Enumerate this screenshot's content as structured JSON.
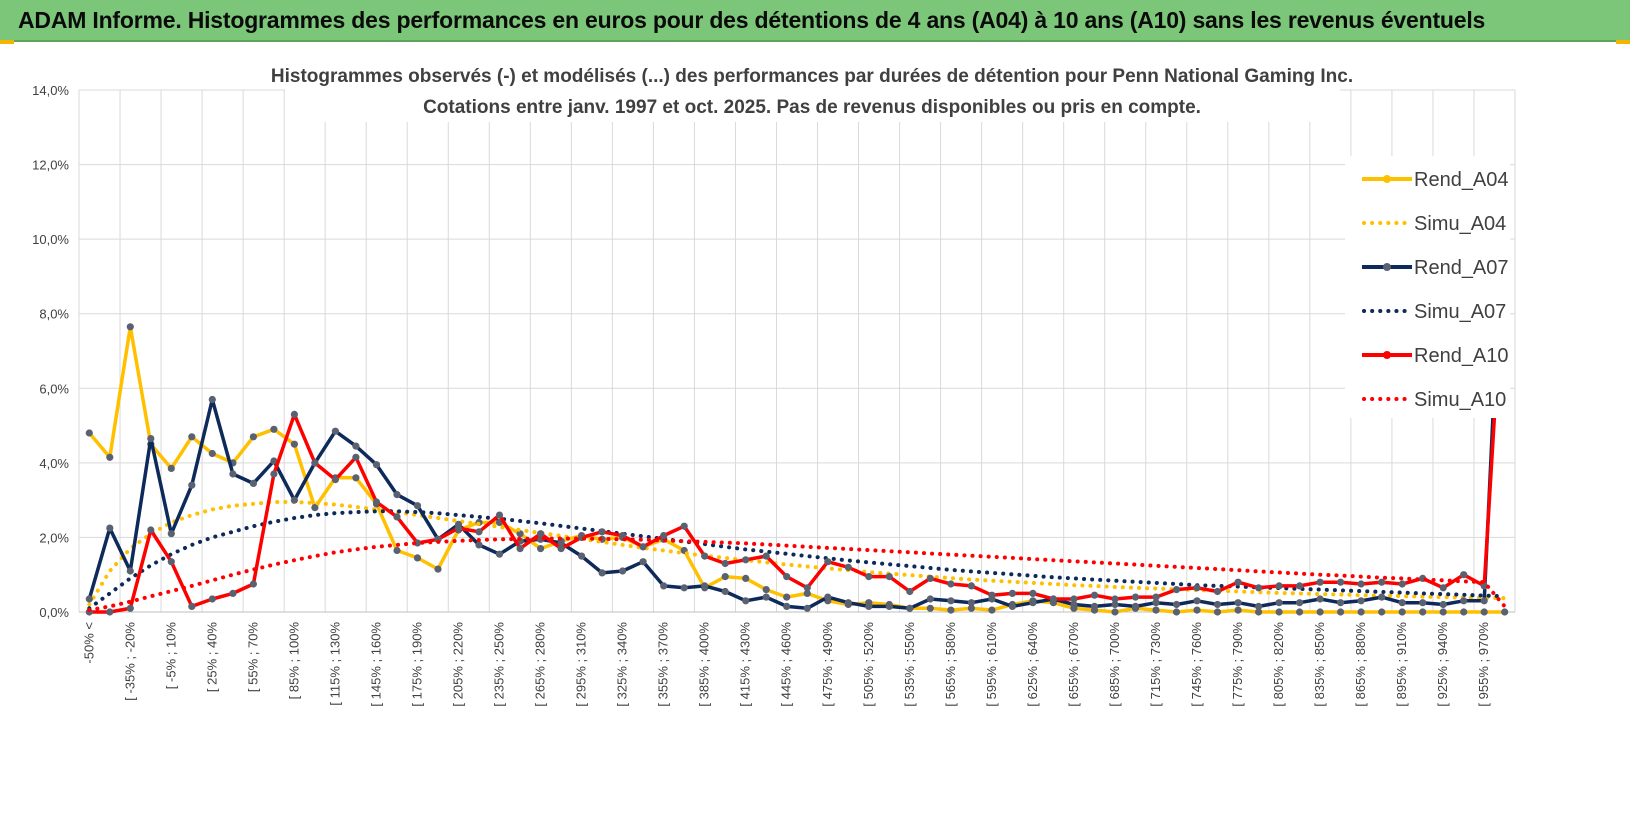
{
  "banner": {
    "title": "ADAM Informe. Histogrammes des performances en euros pour des détentions de 4 ans (A04) à 10 ans (A10) sans les revenus éventuels"
  },
  "colors": {
    "banner_bg": "#7cc67a",
    "A04": "#ffc000",
    "A07": "#0e2a5a",
    "A10": "#ff0000",
    "grid": "#d9d9d9",
    "text": "#404040"
  },
  "chart_data": {
    "type": "line",
    "title_line1": "Histogrammes observés (-) et modélisés (...) des performances par durées de détention pour Penn National Gaming Inc.",
    "title_line2": "Cotations entre janv. 1997 et oct. 2025. Pas de revenus disponibles ou pris en compte.",
    "xlabel": "",
    "ylabel": "",
    "ylim": [
      0,
      14
    ],
    "y_ticks": [
      "0,0%",
      "2,0%",
      "4,0%",
      "6,0%",
      "8,0%",
      "10,0%",
      "12,0%",
      "14,0%"
    ],
    "y_tick_values": [
      0,
      2,
      4,
      6,
      8,
      10,
      12,
      14
    ],
    "x_labels": [
      "-50% <",
      "[ -35% ; -20%",
      "[ -5% ; 10%",
      "[ 25% ; 40%",
      "[ 55% ; 70%",
      "[ 85% ; 100%",
      "[ 115% ; 130%",
      "[ 145% ; 160%",
      "[ 175% ; 190%",
      "[ 205% ; 220%",
      "[ 235% ; 250%",
      "[ 265% ; 280%",
      "[ 295% ; 310%",
      "[ 325% ; 340%",
      "[ 355% ; 370%",
      "[ 385% ; 400%",
      "[ 415% ; 430%",
      "[ 445% ; 460%",
      "[ 475% ; 490%",
      "[ 505% ; 520%",
      "[ 535% ; 550%",
      "[ 565% ; 580%",
      "[ 595% ; 610%",
      "[ 625% ; 640%",
      "[ 655% ; 670%",
      "[ 685% ; 700%",
      "[ 715% ; 730%",
      "[ 745% ; 760%",
      "[ 775% ; 790%",
      "[ 805% ; 820%",
      "[ 835% ; 850%",
      "[ 865% ; 880%",
      "[ 895% ; 910%",
      "[ 925% ; 940%",
      "[ 955% ; 970%"
    ],
    "n_points": 70,
    "grid": true,
    "legend_position": "right",
    "series": [
      {
        "name": "Rend_A04",
        "style": "solid",
        "color": "#ffc000",
        "values": [
          4.8,
          4.15,
          7.65,
          4.5,
          3.85,
          4.7,
          4.25,
          4.0,
          4.7,
          4.9,
          4.5,
          2.8,
          3.6,
          3.6,
          2.9,
          1.65,
          1.45,
          1.15,
          2.2,
          2.4,
          2.4,
          2.1,
          1.7,
          1.9,
          2.05,
          1.95,
          2.0,
          1.75,
          1.95,
          1.65,
          0.65,
          0.95,
          0.9,
          0.6,
          0.4,
          0.5,
          0.3,
          0.2,
          0.25,
          0.2,
          0.1,
          0.1,
          0.05,
          0.1,
          0.05,
          0.2,
          0.3,
          0.25,
          0.1,
          0.05,
          0.0,
          0.1,
          0.05,
          0.0,
          0.05,
          0.0,
          0.05,
          0.0,
          0.0,
          0.0,
          0.0,
          0.0,
          0.0,
          0.0,
          0.0,
          0.0,
          0.0,
          0.0,
          0.0,
          0.0
        ]
      },
      {
        "name": "Simu_A04",
        "style": "dotted",
        "color": "#ffc000",
        "values": [
          0.2,
          1.1,
          1.7,
          2.1,
          2.4,
          2.6,
          2.75,
          2.85,
          2.9,
          2.95,
          2.95,
          2.92,
          2.88,
          2.82,
          2.75,
          2.68,
          2.6,
          2.52,
          2.44,
          2.36,
          2.28,
          2.2,
          2.12,
          2.04,
          1.96,
          1.88,
          1.8,
          1.72,
          1.65,
          1.58,
          1.51,
          1.45,
          1.39,
          1.33,
          1.27,
          1.22,
          1.17,
          1.12,
          1.07,
          1.03,
          0.99,
          0.95,
          0.91,
          0.87,
          0.84,
          0.81,
          0.78,
          0.75,
          0.72,
          0.7,
          0.67,
          0.65,
          0.63,
          0.61,
          0.59,
          0.57,
          0.55,
          0.53,
          0.51,
          0.5,
          0.48,
          0.47,
          0.45,
          0.44,
          0.43,
          0.41,
          0.4,
          0.39,
          0.38,
          0.37
        ]
      },
      {
        "name": "Rend_A07",
        "style": "solid",
        "color": "#0e2a5a",
        "values": [
          0.35,
          2.25,
          1.1,
          4.65,
          2.1,
          3.4,
          5.7,
          3.7,
          3.45,
          4.05,
          3.0,
          4.0,
          4.85,
          4.45,
          3.95,
          3.15,
          2.85,
          1.95,
          2.35,
          1.8,
          1.55,
          1.9,
          1.95,
          1.85,
          1.5,
          1.05,
          1.1,
          1.35,
          0.7,
          0.65,
          0.7,
          0.55,
          0.3,
          0.4,
          0.15,
          0.1,
          0.4,
          0.25,
          0.15,
          0.15,
          0.1,
          0.35,
          0.3,
          0.25,
          0.35,
          0.15,
          0.25,
          0.35,
          0.2,
          0.15,
          0.2,
          0.15,
          0.25,
          0.2,
          0.3,
          0.2,
          0.25,
          0.15,
          0.25,
          0.25,
          0.35,
          0.25,
          0.3,
          0.4,
          0.25,
          0.25,
          0.2,
          0.3,
          0.3,
          11.9
        ]
      },
      {
        "name": "Simu_A07",
        "style": "dotted",
        "color": "#0e2a5a",
        "values": [
          0.1,
          0.5,
          0.9,
          1.25,
          1.55,
          1.8,
          2.0,
          2.15,
          2.3,
          2.42,
          2.52,
          2.6,
          2.65,
          2.68,
          2.7,
          2.7,
          2.68,
          2.65,
          2.6,
          2.55,
          2.5,
          2.44,
          2.38,
          2.31,
          2.24,
          2.17,
          2.1,
          2.03,
          1.96,
          1.89,
          1.82,
          1.75,
          1.68,
          1.62,
          1.56,
          1.5,
          1.44,
          1.38,
          1.33,
          1.28,
          1.23,
          1.18,
          1.13,
          1.09,
          1.05,
          1.01,
          0.97,
          0.93,
          0.9,
          0.87,
          0.84,
          0.81,
          0.78,
          0.75,
          0.72,
          0.7,
          0.68,
          0.66,
          0.64,
          0.62,
          0.6,
          0.58,
          0.56,
          0.54,
          0.52,
          0.5,
          0.48,
          0.46,
          0.44,
          0.42
        ]
      },
      {
        "name": "Rend_A10",
        "style": "solid",
        "color": "#ff0000",
        "values": [
          0.0,
          0.0,
          0.1,
          2.2,
          1.35,
          0.15,
          0.35,
          0.5,
          0.75,
          3.7,
          5.3,
          4.0,
          3.55,
          4.15,
          2.95,
          2.55,
          1.85,
          1.95,
          2.25,
          2.15,
          2.6,
          1.7,
          2.1,
          1.7,
          2.0,
          2.15,
          2.05,
          1.75,
          2.05,
          2.3,
          1.5,
          1.3,
          1.4,
          1.5,
          0.95,
          0.65,
          1.35,
          1.2,
          0.95,
          0.95,
          0.55,
          0.9,
          0.75,
          0.7,
          0.45,
          0.5,
          0.5,
          0.35,
          0.35,
          0.45,
          0.35,
          0.4,
          0.4,
          0.6,
          0.65,
          0.55,
          0.8,
          0.65,
          0.7,
          0.7,
          0.8,
          0.8,
          0.75,
          0.8,
          0.75,
          0.9,
          0.65,
          1.0,
          0.7,
          9.8
        ]
      },
      {
        "name": "Simu_A10",
        "style": "dotted",
        "color": "#ff0000",
        "values": [
          0.05,
          0.15,
          0.28,
          0.42,
          0.56,
          0.7,
          0.85,
          1.0,
          1.14,
          1.27,
          1.39,
          1.5,
          1.6,
          1.68,
          1.75,
          1.8,
          1.85,
          1.88,
          1.91,
          1.93,
          1.95,
          1.96,
          1.97,
          1.97,
          1.97,
          1.96,
          1.95,
          1.94,
          1.92,
          1.9,
          1.88,
          1.86,
          1.84,
          1.81,
          1.78,
          1.75,
          1.72,
          1.69,
          1.66,
          1.63,
          1.6,
          1.57,
          1.54,
          1.51,
          1.48,
          1.45,
          1.42,
          1.39,
          1.36,
          1.33,
          1.3,
          1.27,
          1.24,
          1.21,
          1.18,
          1.15,
          1.12,
          1.09,
          1.06,
          1.03,
          1.0,
          0.98,
          0.95,
          0.92,
          0.9,
          0.87,
          0.85,
          0.82,
          0.8,
          0.15
        ]
      }
    ]
  }
}
